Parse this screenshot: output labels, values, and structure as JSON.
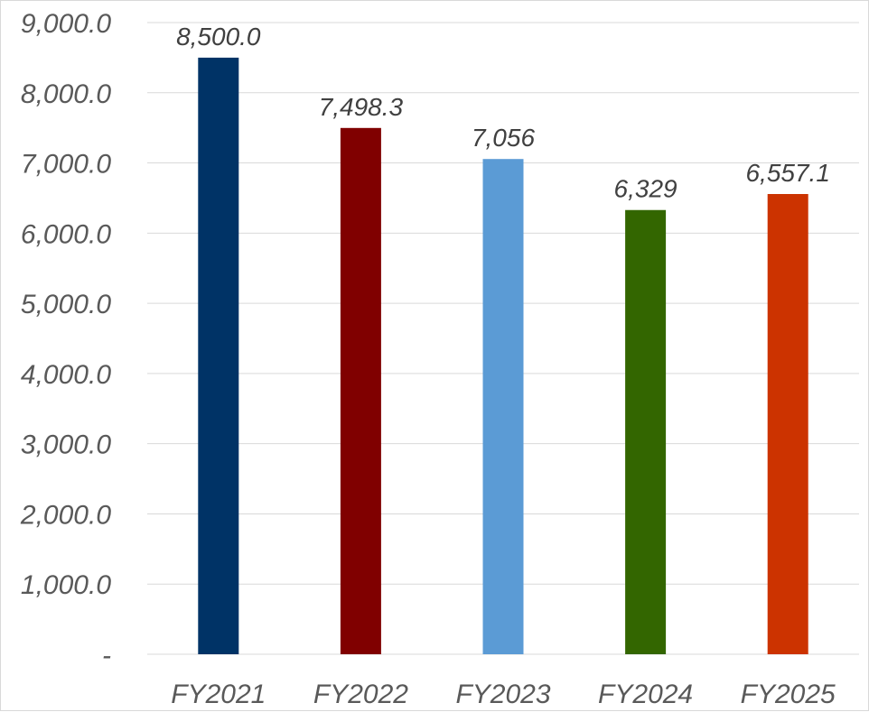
{
  "chart_data": {
    "type": "bar",
    "title": "",
    "xlabel": "",
    "ylabel": "",
    "categories": [
      "FY2021",
      "FY2022",
      "FY2023",
      "FY2024",
      "FY2025"
    ],
    "values": [
      8500.0,
      7498.3,
      7056,
      6329,
      6557.1
    ],
    "data_labels": [
      "8,500.0",
      "7,498.3",
      "7,056",
      "6,329",
      "6,557.1"
    ],
    "colors": [
      "#003366",
      "#800000",
      "#5B9BD5",
      "#336600",
      "#CC3300"
    ],
    "ylim": [
      0,
      9000
    ],
    "yticks": [
      0,
      1000,
      2000,
      3000,
      4000,
      5000,
      6000,
      7000,
      8000,
      9000
    ],
    "ytick_labels": [
      "-",
      "1,000.0",
      "2,000.0",
      "3,000.0",
      "4,000.0",
      "5,000.0",
      "6,000.0",
      "7,000.0",
      "8,000.0",
      "9,000.0"
    ],
    "grid": true,
    "legend": "none"
  }
}
